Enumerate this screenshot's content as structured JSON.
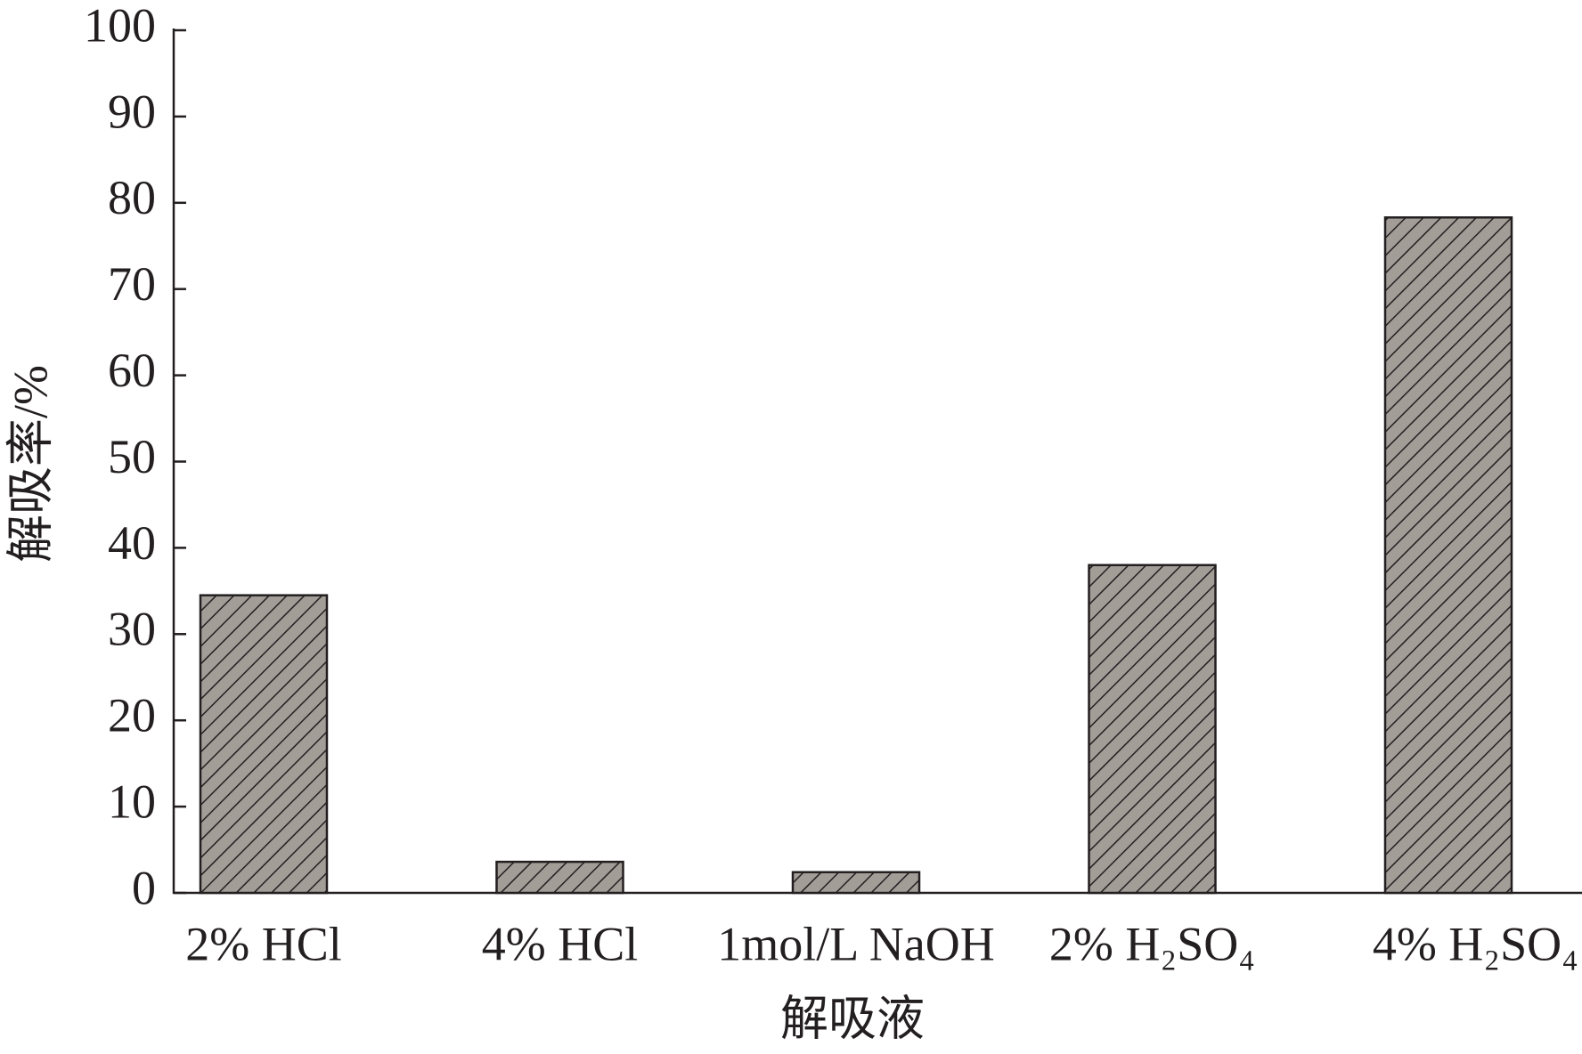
{
  "chart_data": {
    "type": "bar",
    "y_label": "解吸率/%",
    "x_label": "解吸液",
    "categories": [
      "2% HCl",
      "4% HCl",
      "1mol/L NaOH",
      "2% H₂SO₄",
      "4% H₂SO₄"
    ],
    "values": [
      34.5,
      3.6,
      2.4,
      38,
      78.3
    ],
    "color": "#a39d98",
    "ylim": [
      0,
      100
    ],
    "yticks": [
      0,
      10,
      20,
      30,
      40,
      50,
      60,
      70,
      80,
      90,
      100
    ],
    "grid": false
  }
}
